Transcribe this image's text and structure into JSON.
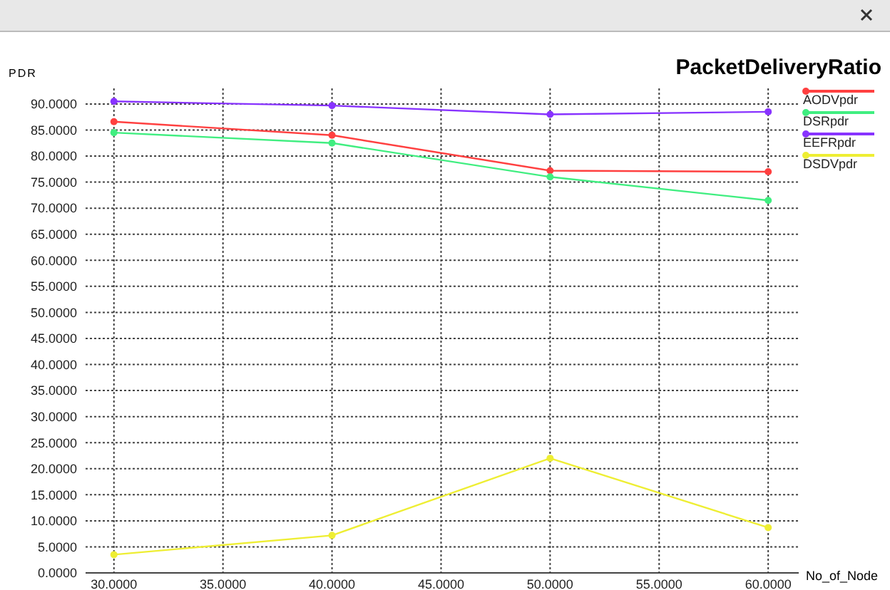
{
  "chart_data": {
    "type": "line",
    "title": "PacketDeliveryRatio",
    "xlabel": "No_of_Node",
    "ylabel": "PDR",
    "x": [
      30,
      40,
      50,
      60
    ],
    "series": [
      {
        "name": "AODVpdr",
        "color": "#ff4040",
        "values": [
          86.6,
          84.0,
          77.2,
          77.0
        ]
      },
      {
        "name": "DSRpdr",
        "color": "#40ee80",
        "values": [
          84.5,
          82.5,
          76.0,
          71.5
        ]
      },
      {
        "name": "EEFRpdr",
        "color": "#8833ff",
        "values": [
          90.5,
          89.7,
          88.0,
          88.5
        ]
      },
      {
        "name": "DSDVpdr",
        "color": "#eeee33",
        "values": [
          3.5,
          7.2,
          22.0,
          8.7
        ]
      }
    ],
    "xlim": [
      28.7,
      61.4
    ],
    "ylim": [
      0,
      93
    ],
    "xticks": [
      {
        "value": 30,
        "label": "30.0000"
      },
      {
        "value": 35,
        "label": "35.0000"
      },
      {
        "value": 40,
        "label": "40.0000"
      },
      {
        "value": 45,
        "label": "45.0000"
      },
      {
        "value": 50,
        "label": "50.0000"
      },
      {
        "value": 55,
        "label": "55.0000"
      },
      {
        "value": 60,
        "label": "60.0000"
      }
    ],
    "yticks": [
      {
        "value": 0,
        "label": "0.0000"
      },
      {
        "value": 5,
        "label": "5.0000"
      },
      {
        "value": 10,
        "label": "10.0000"
      },
      {
        "value": 15,
        "label": "15.0000"
      },
      {
        "value": 20,
        "label": "20.0000"
      },
      {
        "value": 25,
        "label": "25.0000"
      },
      {
        "value": 30,
        "label": "30.0000"
      },
      {
        "value": 35,
        "label": "35.0000"
      },
      {
        "value": 40,
        "label": "40.0000"
      },
      {
        "value": 45,
        "label": "45.0000"
      },
      {
        "value": 50,
        "label": "50.0000"
      },
      {
        "value": 55,
        "label": "55.0000"
      },
      {
        "value": 60,
        "label": "60.0000"
      },
      {
        "value": 65,
        "label": "65.0000"
      },
      {
        "value": 70,
        "label": "70.0000"
      },
      {
        "value": 75,
        "label": "75.0000"
      },
      {
        "value": 80,
        "label": "80.0000"
      },
      {
        "value": 85,
        "label": "85.0000"
      },
      {
        "value": 90,
        "label": "90.0000"
      }
    ],
    "grid": true,
    "legend": "top right",
    "marker": "circle",
    "line_style": "solid"
  }
}
